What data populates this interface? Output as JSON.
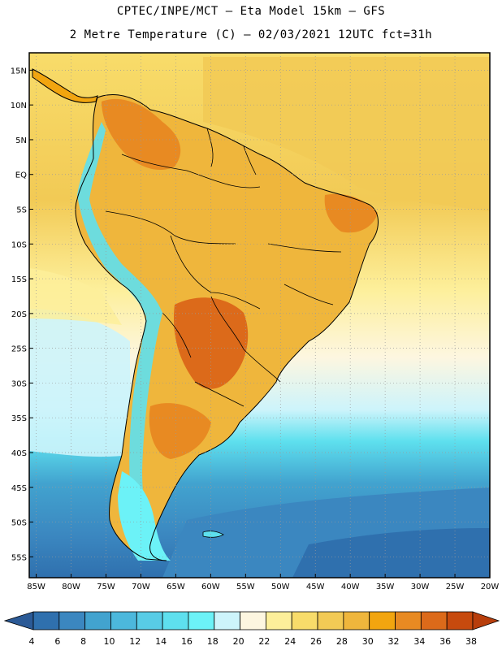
{
  "header": {
    "line1": "CPTEC/INPE/MCT –  Eta Model 15km – GFS",
    "line2": "2 Metre Temperature (C) – 02/03/2021 12UTC fct=31h"
  },
  "axes": {
    "lat_labels": [
      "15N",
      "10N",
      "5N",
      "EQ",
      "5S",
      "10S",
      "15S",
      "20S",
      "25S",
      "30S",
      "35S",
      "40S",
      "45S",
      "50S",
      "55S"
    ],
    "lon_labels": [
      "85W",
      "80W",
      "75W",
      "70W",
      "65W",
      "60W",
      "55W",
      "50W",
      "45W",
      "40W",
      "35W",
      "30W",
      "25W",
      "20W"
    ],
    "lat_range": [
      17.5,
      -58
    ],
    "lon_range": [
      -86,
      -20
    ]
  },
  "colorbar": {
    "labels": [
      "4",
      "6",
      "8",
      "10",
      "12",
      "14",
      "16",
      "18",
      "20",
      "22",
      "24",
      "26",
      "28",
      "30",
      "32",
      "34",
      "36",
      "38"
    ],
    "colors": [
      "#2f70ae",
      "#3b87c0",
      "#42a3cf",
      "#4cb8dc",
      "#58cce6",
      "#5ee0ee",
      "#6cf2f7",
      "#cdf4fb",
      "#fdf6e0",
      "#fdef9a",
      "#f8dc6a",
      "#f2ca55",
      "#efb63c",
      "#f2a50f",
      "#e88a22",
      "#dc6a1a",
      "#c74a0e"
    ],
    "under_color": "#2b5a96",
    "over_color": "#b83e0c"
  }
}
